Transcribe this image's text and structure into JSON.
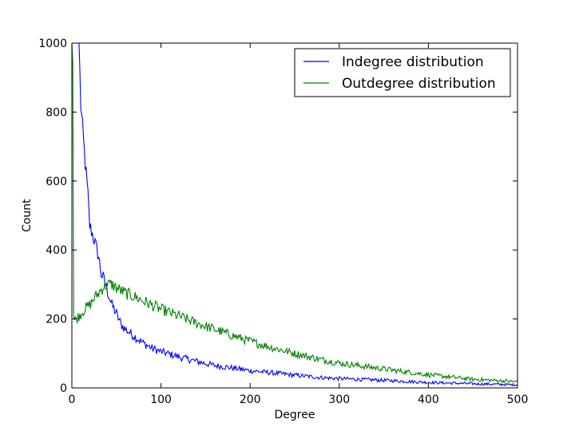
{
  "chart_data": {
    "type": "line",
    "title": "",
    "xlabel": "Degree",
    "ylabel": "Count",
    "xlim": [
      0,
      500
    ],
    "ylim": [
      0,
      1000
    ],
    "xticks": [
      "0",
      "100",
      "200",
      "300",
      "400",
      "500"
    ],
    "yticks": [
      "0",
      "200",
      "400",
      "600",
      "800",
      "1000"
    ],
    "grid": false,
    "legend_position": "top-right",
    "series": [
      {
        "name": "Indegree distribution",
        "color": "#0000ff",
        "x": [
          1,
          3,
          5,
          8,
          10,
          12,
          15,
          18,
          20,
          22,
          25,
          28,
          30,
          33,
          35,
          38,
          40,
          45,
          50,
          55,
          60,
          70,
          80,
          90,
          100,
          120,
          140,
          160,
          180,
          200,
          220,
          250,
          280,
          300,
          350,
          400,
          450,
          500
        ],
        "y": [
          1000,
          1000,
          1000,
          1000,
          820,
          750,
          650,
          560,
          470,
          455,
          430,
          400,
          380,
          330,
          320,
          300,
          280,
          240,
          215,
          185,
          170,
          150,
          130,
          115,
          105,
          90,
          77,
          65,
          58,
          50,
          45,
          37,
          30,
          27,
          22,
          16,
          12,
          9
        ]
      },
      {
        "name": "Outdegree distribution",
        "color": "#008000",
        "x": [
          0,
          1,
          2,
          3,
          5,
          10,
          15,
          20,
          25,
          30,
          35,
          40,
          45,
          50,
          60,
          70,
          80,
          90,
          100,
          120,
          140,
          160,
          180,
          200,
          220,
          250,
          280,
          300,
          350,
          400,
          450,
          500
        ],
        "y": [
          1000,
          950,
          210,
          195,
          200,
          215,
          230,
          240,
          260,
          275,
          292,
          300,
          300,
          290,
          275,
          265,
          252,
          240,
          228,
          208,
          188,
          170,
          152,
          135,
          120,
          100,
          82,
          72,
          55,
          38,
          25,
          18
        ]
      }
    ]
  }
}
